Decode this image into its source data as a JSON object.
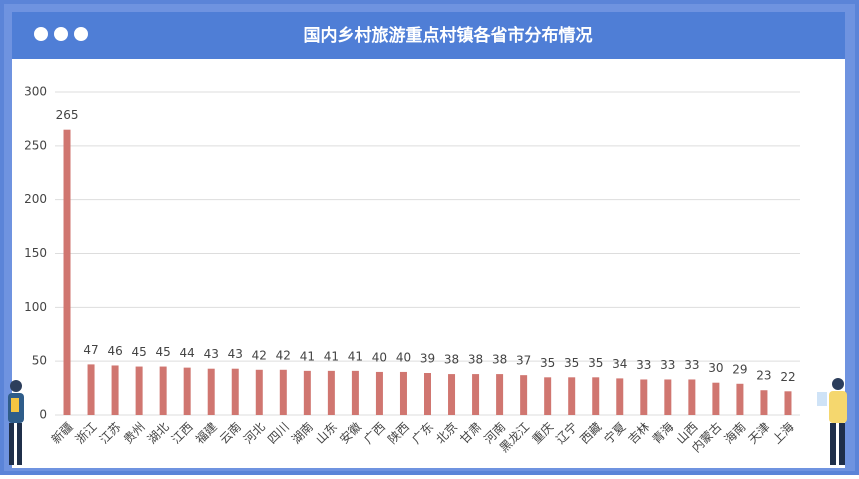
{
  "chart_data": {
    "type": "bar",
    "title": "国内乡村旅游重点村镇各省市分布情况",
    "categories": [
      "新疆",
      "浙江",
      "江苏",
      "贵州",
      "湖北",
      "江西",
      "福建",
      "云南",
      "河北",
      "四川",
      "湖南",
      "山东",
      "安徽",
      "广西",
      "陕西",
      "广东",
      "北京",
      "甘肃",
      "河南",
      "黑龙江",
      "重庆",
      "辽宁",
      "西藏",
      "宁夏",
      "吉林",
      "青海",
      "山西",
      "内蒙古",
      "海南",
      "天津",
      "上海"
    ],
    "values": [
      265,
      47,
      46,
      45,
      45,
      44,
      43,
      43,
      42,
      42,
      41,
      41,
      41,
      40,
      40,
      39,
      38,
      38,
      38,
      37,
      35,
      35,
      35,
      34,
      33,
      33,
      33,
      30,
      29,
      23,
      22
    ],
    "color": "#d07670",
    "ylim": [
      0,
      300
    ],
    "yticks": [
      0,
      50,
      100,
      150,
      200,
      250,
      300
    ],
    "grid": true
  }
}
